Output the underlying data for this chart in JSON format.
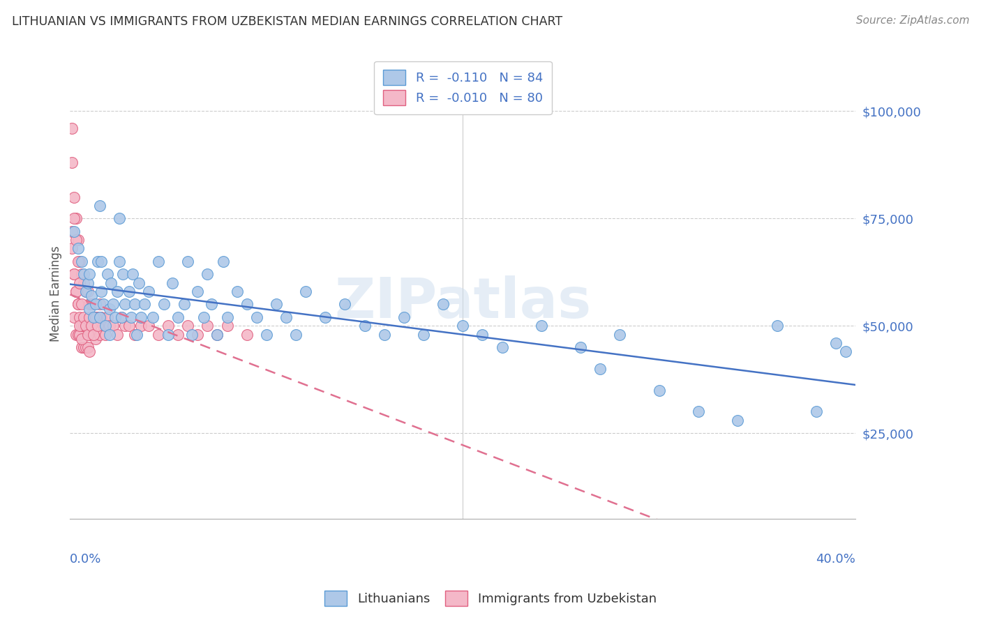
{
  "title": "LITHUANIAN VS IMMIGRANTS FROM UZBEKISTAN MEDIAN EARNINGS CORRELATION CHART",
  "source": "Source: ZipAtlas.com",
  "ylabel": "Median Earnings",
  "y_ticks": [
    25000,
    50000,
    75000,
    100000
  ],
  "y_tick_labels": [
    "$25,000",
    "$50,000",
    "$75,000",
    "$100,000"
  ],
  "x_range": [
    0.0,
    0.4
  ],
  "y_range": [
    5000,
    110000
  ],
  "color_blue": "#aec8e8",
  "color_pink": "#f4b8c8",
  "edge_blue": "#5b9bd5",
  "edge_pink": "#e06080",
  "line_blue": "#4472c4",
  "line_pink": "#e07090",
  "watermark": "ZIPatlas",
  "blue_x": [
    0.002,
    0.004,
    0.006,
    0.007,
    0.008,
    0.009,
    0.01,
    0.01,
    0.011,
    0.012,
    0.013,
    0.014,
    0.015,
    0.016,
    0.016,
    0.017,
    0.018,
    0.019,
    0.02,
    0.02,
    0.021,
    0.022,
    0.023,
    0.024,
    0.025,
    0.026,
    0.027,
    0.028,
    0.03,
    0.031,
    0.032,
    0.033,
    0.034,
    0.035,
    0.036,
    0.038,
    0.04,
    0.042,
    0.045,
    0.048,
    0.05,
    0.052,
    0.055,
    0.058,
    0.06,
    0.062,
    0.065,
    0.068,
    0.07,
    0.072,
    0.075,
    0.078,
    0.08,
    0.085,
    0.09,
    0.095,
    0.1,
    0.105,
    0.11,
    0.115,
    0.12,
    0.13,
    0.14,
    0.15,
    0.16,
    0.17,
    0.18,
    0.19,
    0.2,
    0.21,
    0.22,
    0.24,
    0.26,
    0.27,
    0.28,
    0.3,
    0.32,
    0.34,
    0.36,
    0.38,
    0.39,
    0.395,
    0.015,
    0.025
  ],
  "blue_y": [
    72000,
    68000,
    65000,
    62000,
    58000,
    60000,
    54000,
    62000,
    57000,
    52000,
    55000,
    65000,
    52000,
    58000,
    65000,
    55000,
    50000,
    62000,
    54000,
    48000,
    60000,
    55000,
    52000,
    58000,
    65000,
    52000,
    62000,
    55000,
    58000,
    52000,
    62000,
    55000,
    48000,
    60000,
    52000,
    55000,
    58000,
    52000,
    65000,
    55000,
    48000,
    60000,
    52000,
    55000,
    65000,
    48000,
    58000,
    52000,
    62000,
    55000,
    48000,
    65000,
    52000,
    58000,
    55000,
    52000,
    48000,
    55000,
    52000,
    48000,
    58000,
    52000,
    55000,
    50000,
    48000,
    52000,
    48000,
    55000,
    50000,
    48000,
    45000,
    50000,
    45000,
    40000,
    48000,
    35000,
    30000,
    28000,
    50000,
    30000,
    46000,
    44000,
    78000,
    75000
  ],
  "pink_x": [
    0.001,
    0.001,
    0.002,
    0.002,
    0.002,
    0.003,
    0.003,
    0.003,
    0.004,
    0.004,
    0.004,
    0.005,
    0.005,
    0.005,
    0.006,
    0.006,
    0.006,
    0.007,
    0.007,
    0.007,
    0.008,
    0.008,
    0.008,
    0.009,
    0.009,
    0.009,
    0.01,
    0.01,
    0.01,
    0.011,
    0.011,
    0.012,
    0.012,
    0.013,
    0.013,
    0.014,
    0.015,
    0.015,
    0.016,
    0.017,
    0.018,
    0.019,
    0.02,
    0.022,
    0.024,
    0.026,
    0.028,
    0.03,
    0.033,
    0.036,
    0.04,
    0.045,
    0.05,
    0.055,
    0.06,
    0.065,
    0.07,
    0.075,
    0.08,
    0.09,
    0.001,
    0.001,
    0.002,
    0.002,
    0.003,
    0.003,
    0.004,
    0.004,
    0.005,
    0.005,
    0.006,
    0.006,
    0.007,
    0.008,
    0.009,
    0.01,
    0.011,
    0.012,
    0.013,
    0.014
  ],
  "pink_y": [
    96000,
    72000,
    80000,
    62000,
    52000,
    75000,
    58000,
    48000,
    70000,
    55000,
    48000,
    65000,
    52000,
    48000,
    62000,
    50000,
    45000,
    60000,
    50000,
    45000,
    58000,
    50000,
    45000,
    58000,
    50000,
    45000,
    55000,
    48000,
    44000,
    55000,
    48000,
    55000,
    48000,
    52000,
    47000,
    52000,
    55000,
    48000,
    52000,
    50000,
    48000,
    52000,
    50000,
    50000,
    48000,
    52000,
    50000,
    50000,
    48000,
    50000,
    50000,
    48000,
    50000,
    48000,
    50000,
    48000,
    50000,
    48000,
    50000,
    48000,
    88000,
    68000,
    75000,
    62000,
    70000,
    58000,
    65000,
    55000,
    60000,
    50000,
    55000,
    47000,
    52000,
    50000,
    48000,
    52000,
    50000,
    48000,
    52000,
    50000
  ]
}
